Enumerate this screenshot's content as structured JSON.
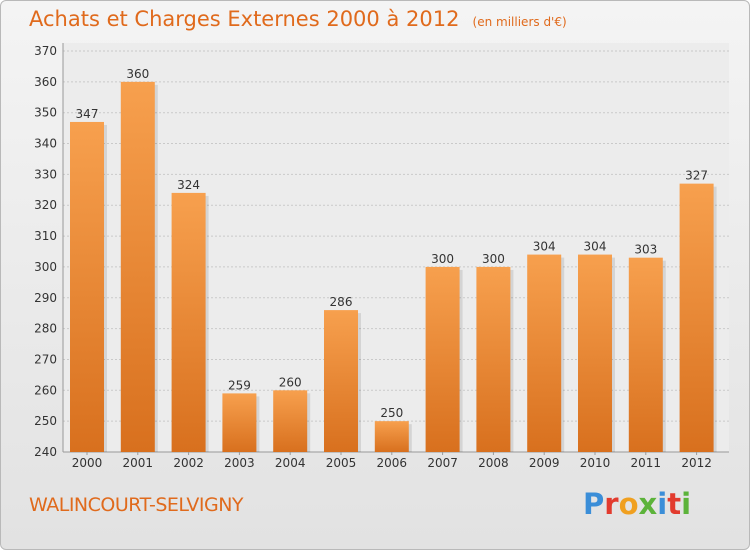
{
  "title": "Achats et Charges Externes 2000 à 2012",
  "unit_note": "(en milliers d'€)",
  "commune": "WALINCOURT-SELVIGNY",
  "logo": {
    "letters": [
      "P",
      "r",
      "o",
      "x",
      "i",
      "t",
      "i"
    ],
    "colors": [
      "#3b8ed8",
      "#e23b2e",
      "#f0a020",
      "#5cb33a",
      "#3b8ed8",
      "#e23b2e",
      "#5cb33a"
    ]
  },
  "colors": {
    "bar_top": "#f7a04e",
    "bar_bottom": "#d8701e",
    "title": "#e06a1c"
  },
  "chart_data": {
    "type": "bar",
    "categories": [
      "2000",
      "2001",
      "2002",
      "2003",
      "2004",
      "2005",
      "2006",
      "2007",
      "2008",
      "2009",
      "2010",
      "2011",
      "2012"
    ],
    "values": [
      347,
      360,
      324,
      259,
      260,
      286,
      250,
      300,
      300,
      304,
      304,
      303,
      327
    ],
    "ylim": [
      240,
      370
    ],
    "yticks": [
      240,
      250,
      260,
      270,
      280,
      290,
      300,
      310,
      320,
      330,
      340,
      350,
      360,
      370
    ],
    "grid": true
  }
}
